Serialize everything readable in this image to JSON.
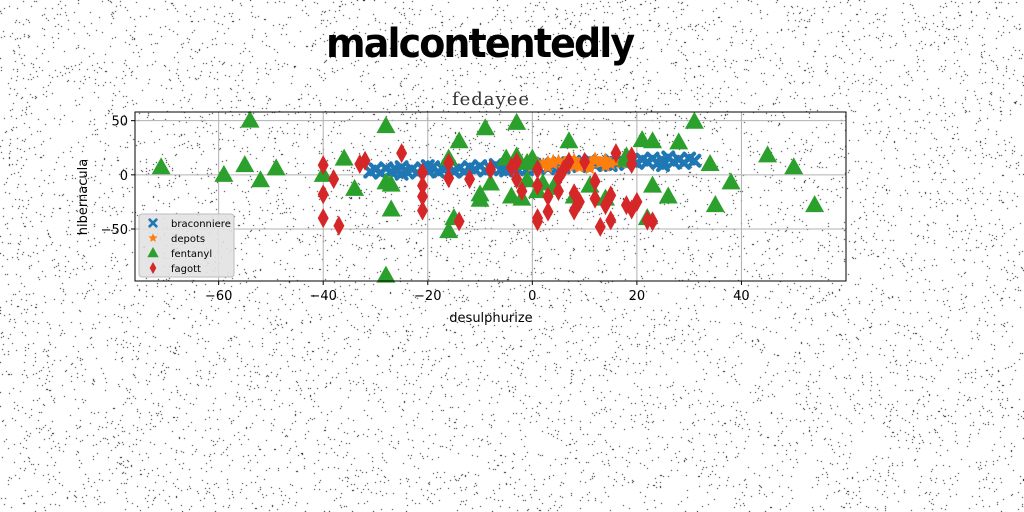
{
  "heading": "malcontentedly",
  "chart_data": {
    "type": "scatter",
    "title": "fedayee",
    "xlabel": "desulphurize",
    "ylabel": "hibernacula",
    "xlim": [
      -76,
      60
    ],
    "ylim": [
      -98,
      58
    ],
    "xticks": [
      -60,
      -40,
      -20,
      0,
      20,
      40
    ],
    "yticks": [
      50,
      0,
      -50
    ],
    "grid": true,
    "legend_position": "lower-left",
    "series": [
      {
        "name": "braconniere",
        "marker": "x",
        "color": "#1f77b4",
        "points": [
          [
            -31,
            3
          ],
          [
            -30,
            5
          ],
          [
            -29,
            2
          ],
          [
            -28,
            6
          ],
          [
            -27,
            3
          ],
          [
            -26,
            4
          ],
          [
            -25,
            7
          ],
          [
            -24,
            3
          ],
          [
            -23,
            5
          ],
          [
            -22,
            2
          ],
          [
            -21,
            6
          ],
          [
            -20,
            4
          ],
          [
            -19,
            7
          ],
          [
            -18,
            3
          ],
          [
            -17,
            5
          ],
          [
            -16,
            8
          ],
          [
            -15,
            4
          ],
          [
            -14,
            6
          ],
          [
            -13,
            3
          ],
          [
            -12,
            7
          ],
          [
            -11,
            5
          ],
          [
            -10,
            8
          ],
          [
            -9,
            4
          ],
          [
            -8,
            6
          ],
          [
            -7,
            9
          ],
          [
            -6,
            5
          ],
          [
            -5,
            7
          ],
          [
            -4,
            10
          ],
          [
            -3,
            6
          ],
          [
            -2,
            8
          ],
          [
            -1,
            5
          ],
          [
            0,
            9
          ],
          [
            1,
            7
          ],
          [
            2,
            10
          ],
          [
            3,
            6
          ],
          [
            4,
            9
          ],
          [
            5,
            11
          ],
          [
            6,
            7
          ],
          [
            7,
            10
          ],
          [
            8,
            12
          ],
          [
            9,
            8
          ],
          [
            10,
            11
          ],
          [
            11,
            13
          ],
          [
            12,
            9
          ],
          [
            13,
            12
          ],
          [
            14,
            10
          ],
          [
            15,
            13
          ],
          [
            16,
            11
          ],
          [
            17,
            14
          ],
          [
            18,
            10
          ],
          [
            19,
            13
          ],
          [
            20,
            11
          ],
          [
            21,
            14
          ],
          [
            22,
            12
          ],
          [
            23,
            15
          ],
          [
            24,
            11
          ],
          [
            25,
            13
          ],
          [
            26,
            16
          ],
          [
            27,
            12
          ],
          [
            28,
            14
          ],
          [
            29,
            11
          ],
          [
            30,
            15
          ],
          [
            31,
            13
          ],
          [
            -25,
            1
          ],
          [
            -15,
            3
          ],
          [
            -5,
            4
          ],
          [
            5,
            7
          ],
          [
            15,
            9
          ],
          [
            25,
            9
          ],
          [
            -20,
            8
          ]
        ]
      },
      {
        "name": "depots",
        "marker": "star",
        "color": "#ff7f0e",
        "points": [
          [
            -1,
            10
          ],
          [
            0,
            8
          ],
          [
            1,
            11
          ],
          [
            2,
            9
          ],
          [
            3,
            12
          ],
          [
            4,
            10
          ],
          [
            5,
            13
          ],
          [
            6,
            9
          ],
          [
            7,
            11
          ],
          [
            8,
            14
          ],
          [
            9,
            10
          ],
          [
            10,
            12
          ],
          [
            11,
            9
          ],
          [
            12,
            13
          ],
          [
            13,
            11
          ],
          [
            14,
            14
          ],
          [
            15,
            10
          ],
          [
            16,
            12
          ],
          [
            17,
            11
          ],
          [
            -2,
            12
          ],
          [
            3,
            7
          ],
          [
            6,
            6
          ],
          [
            9,
            7
          ],
          [
            11,
            6
          ],
          [
            4,
            13
          ],
          [
            7,
            15
          ],
          [
            12,
            15
          ],
          [
            14,
            8
          ],
          [
            1,
            6
          ],
          [
            8,
            8
          ]
        ]
      },
      {
        "name": "fentanyl",
        "marker": "triangle",
        "color": "#2ca02c",
        "points": [
          [
            -71,
            7
          ],
          [
            -59,
            0
          ],
          [
            -55,
            9
          ],
          [
            -54,
            50
          ],
          [
            -52,
            -5
          ],
          [
            -49,
            6
          ],
          [
            -40,
            0
          ],
          [
            -36,
            15
          ],
          [
            -34,
            -13
          ],
          [
            -28,
            45
          ],
          [
            -28,
            -7
          ],
          [
            -27,
            -9
          ],
          [
            -27,
            -32
          ],
          [
            -28,
            -93
          ],
          [
            -16,
            15
          ],
          [
            -16,
            -52
          ],
          [
            -15,
            -40
          ],
          [
            -14,
            31
          ],
          [
            -10,
            -18
          ],
          [
            -10,
            -23
          ],
          [
            -9,
            43
          ],
          [
            -8,
            -8
          ],
          [
            -5,
            15
          ],
          [
            -4,
            -20
          ],
          [
            -3,
            17
          ],
          [
            -3,
            48
          ],
          [
            -2,
            -22
          ],
          [
            0,
            15
          ],
          [
            -1,
            -5
          ],
          [
            1,
            -15
          ],
          [
            2,
            -8
          ],
          [
            4,
            -12
          ],
          [
            7,
            31
          ],
          [
            8,
            -20
          ],
          [
            11,
            -10
          ],
          [
            14,
            -22
          ],
          [
            18,
            17
          ],
          [
            21,
            32
          ],
          [
            22,
            -40
          ],
          [
            23,
            -10
          ],
          [
            23,
            31
          ],
          [
            26,
            -20
          ],
          [
            28,
            30
          ],
          [
            31,
            49
          ],
          [
            34,
            10
          ],
          [
            35,
            -28
          ],
          [
            38,
            -7
          ],
          [
            45,
            18
          ],
          [
            50,
            7
          ],
          [
            54,
            -28
          ],
          [
            18,
            14
          ],
          [
            -1,
            11
          ]
        ]
      },
      {
        "name": "fagott",
        "marker": "diamond",
        "color": "#d62728",
        "points": [
          [
            -40,
            -40
          ],
          [
            -40,
            -18
          ],
          [
            -40,
            9
          ],
          [
            -38,
            -4
          ],
          [
            -37,
            -47
          ],
          [
            -33,
            10
          ],
          [
            -32,
            13
          ],
          [
            -25,
            20
          ],
          [
            -21,
            -33
          ],
          [
            -21,
            -20
          ],
          [
            -21,
            -10
          ],
          [
            -21,
            2
          ],
          [
            -16,
            -3
          ],
          [
            -16,
            11
          ],
          [
            -14,
            -43
          ],
          [
            -8,
            5
          ],
          [
            -3,
            -4
          ],
          [
            -3,
            12
          ],
          [
            -2,
            -15
          ],
          [
            1,
            -43
          ],
          [
            1,
            -40
          ],
          [
            1,
            -10
          ],
          [
            1,
            5
          ],
          [
            3,
            -34
          ],
          [
            3,
            -20
          ],
          [
            5,
            -15
          ],
          [
            5,
            -3
          ],
          [
            6,
            5
          ],
          [
            8,
            -17
          ],
          [
            8,
            -33
          ],
          [
            9,
            -25
          ],
          [
            12,
            -6
          ],
          [
            12,
            -22
          ],
          [
            13,
            -48
          ],
          [
            14,
            -28
          ],
          [
            15,
            -42
          ],
          [
            15,
            -19
          ],
          [
            16,
            20
          ],
          [
            18,
            -28
          ],
          [
            19,
            -32
          ],
          [
            19,
            17
          ],
          [
            20,
            -25
          ],
          [
            22,
            -42
          ],
          [
            23,
            -43
          ],
          [
            7,
            12
          ],
          [
            -4,
            7
          ],
          [
            10,
            12
          ],
          [
            19,
            10
          ],
          [
            -12,
            -4
          ]
        ]
      }
    ]
  }
}
